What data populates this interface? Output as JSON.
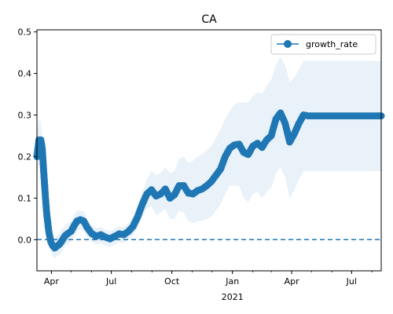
{
  "chart_data": {
    "type": "line",
    "title": "CA",
    "xlabel": "",
    "ylabel": "",
    "x_range": [
      "2020-03-10",
      "2021-08-15"
    ],
    "ylim": [
      -0.075,
      0.505
    ],
    "x_ticks": [
      {
        "date": "2020-04-01",
        "label": "Apr"
      },
      {
        "date": "2020-07-01",
        "label": "Jul"
      },
      {
        "date": "2020-10-01",
        "label": "Oct"
      },
      {
        "date": "2021-01-01",
        "label": "Jan"
      },
      {
        "date": "2021-04-01",
        "label": "Apr"
      },
      {
        "date": "2021-07-01",
        "label": "Jul"
      }
    ],
    "x_year_label": {
      "date": "2021-01-01",
      "label": "2021"
    },
    "y_ticks": [
      0.0,
      0.1,
      0.2,
      0.3,
      0.4,
      0.5
    ],
    "y_tick_labels": [
      "0.0",
      "0.1",
      "0.2",
      "0.3",
      "0.4",
      "0.5"
    ],
    "reference_line": {
      "y": 0.0,
      "style": "dashed",
      "color": "#1f77b4"
    },
    "legend": {
      "position": "top-right",
      "entries": [
        "growth_rate"
      ]
    },
    "colors": {
      "series": "#1f77b4",
      "band": "#dbe8f5"
    },
    "series": [
      {
        "name": "growth_rate",
        "x": [
          "2020-03-10",
          "2020-03-13",
          "2020-03-16",
          "2020-03-18",
          "2020-03-20",
          "2020-03-23",
          "2020-03-25",
          "2020-03-28",
          "2020-03-31",
          "2020-04-03",
          "2020-04-06",
          "2020-04-10",
          "2020-04-14",
          "2020-04-18",
          "2020-04-22",
          "2020-04-26",
          "2020-05-01",
          "2020-05-06",
          "2020-05-10",
          "2020-05-15",
          "2020-05-20",
          "2020-05-25",
          "2020-06-01",
          "2020-06-08",
          "2020-06-15",
          "2020-06-22",
          "2020-06-29",
          "2020-07-06",
          "2020-07-13",
          "2020-07-20",
          "2020-07-27",
          "2020-08-03",
          "2020-08-10",
          "2020-08-17",
          "2020-08-24",
          "2020-08-31",
          "2020-09-07",
          "2020-09-14",
          "2020-09-21",
          "2020-09-28",
          "2020-10-05",
          "2020-10-12",
          "2020-10-19",
          "2020-10-26",
          "2020-11-02",
          "2020-11-09",
          "2020-11-16",
          "2020-11-23",
          "2020-11-30",
          "2020-12-07",
          "2020-12-14",
          "2020-12-21",
          "2020-12-28",
          "2021-01-04",
          "2021-01-11",
          "2021-01-18",
          "2021-01-25",
          "2021-02-01",
          "2021-02-08",
          "2021-02-15",
          "2021-02-22",
          "2021-03-01",
          "2021-03-08",
          "2021-03-15",
          "2021-03-22",
          "2021-03-29",
          "2021-04-05",
          "2021-04-12",
          "2021-04-19",
          "2021-04-26",
          "2021-05-03",
          "2021-05-10",
          "2021-05-17",
          "2021-05-24",
          "2021-05-31",
          "2021-06-07",
          "2021-06-14",
          "2021-06-21",
          "2021-06-28",
          "2021-07-05",
          "2021-07-12",
          "2021-07-19",
          "2021-07-26",
          "2021-08-02",
          "2021-08-09",
          "2021-08-15"
        ],
        "y": [
          0.2,
          0.24,
          0.24,
          0.22,
          0.17,
          0.1,
          0.06,
          0.02,
          -0.005,
          -0.015,
          -0.02,
          -0.015,
          -0.01,
          0.0,
          0.01,
          0.015,
          0.02,
          0.035,
          0.045,
          0.048,
          0.045,
          0.03,
          0.015,
          0.008,
          0.012,
          0.006,
          0.002,
          0.008,
          0.014,
          0.012,
          0.02,
          0.032,
          0.055,
          0.085,
          0.11,
          0.12,
          0.105,
          0.11,
          0.122,
          0.1,
          0.108,
          0.13,
          0.13,
          0.112,
          0.11,
          0.118,
          0.122,
          0.13,
          0.14,
          0.155,
          0.17,
          0.2,
          0.22,
          0.228,
          0.23,
          0.21,
          0.205,
          0.225,
          0.232,
          0.222,
          0.24,
          0.25,
          0.29,
          0.305,
          0.28,
          0.235,
          0.255,
          0.28,
          0.3,
          0.298,
          0.298,
          0.298,
          0.298,
          0.298,
          0.298,
          0.298,
          0.298,
          0.298,
          0.298,
          0.298,
          0.298,
          0.298,
          0.298,
          0.298,
          0.298,
          0.298
        ],
        "band_upper": [
          0.26,
          0.29,
          0.28,
          0.25,
          0.2,
          0.13,
          0.09,
          0.05,
          0.02,
          0.01,
          0.005,
          0.01,
          0.018,
          0.028,
          0.035,
          0.04,
          0.045,
          0.06,
          0.07,
          0.07,
          0.068,
          0.05,
          0.035,
          0.028,
          0.03,
          0.024,
          0.02,
          0.026,
          0.032,
          0.03,
          0.04,
          0.055,
          0.082,
          0.115,
          0.145,
          0.165,
          0.155,
          0.16,
          0.175,
          0.16,
          0.165,
          0.195,
          0.2,
          0.185,
          0.19,
          0.2,
          0.205,
          0.215,
          0.225,
          0.245,
          0.265,
          0.29,
          0.31,
          0.325,
          0.33,
          0.33,
          0.33,
          0.345,
          0.355,
          0.35,
          0.37,
          0.385,
          0.42,
          0.44,
          0.42,
          0.38,
          0.39,
          0.41,
          0.43,
          0.43,
          0.43,
          0.43,
          0.43,
          0.43,
          0.43,
          0.43,
          0.43,
          0.43,
          0.43,
          0.43,
          0.43,
          0.43,
          0.43,
          0.43,
          0.43,
          0.43
        ],
        "band_lower": [
          0.14,
          0.19,
          0.2,
          0.19,
          0.14,
          0.07,
          0.03,
          -0.01,
          -0.03,
          -0.04,
          -0.045,
          -0.04,
          -0.035,
          -0.025,
          -0.015,
          -0.01,
          -0.005,
          0.01,
          0.02,
          0.025,
          0.02,
          0.008,
          -0.005,
          -0.012,
          -0.008,
          -0.014,
          -0.018,
          -0.012,
          -0.006,
          -0.008,
          0.0,
          0.01,
          0.03,
          0.055,
          0.075,
          0.08,
          0.06,
          0.065,
          0.075,
          0.05,
          0.05,
          0.07,
          0.065,
          0.045,
          0.04,
          0.045,
          0.045,
          0.05,
          0.055,
          0.07,
          0.085,
          0.11,
          0.13,
          0.13,
          0.13,
          0.1,
          0.09,
          0.11,
          0.115,
          0.1,
          0.115,
          0.125,
          0.16,
          0.175,
          0.15,
          0.1,
          0.12,
          0.145,
          0.165,
          0.165,
          0.165,
          0.165,
          0.165,
          0.165,
          0.165,
          0.165,
          0.165,
          0.165,
          0.165,
          0.165,
          0.165,
          0.165,
          0.165,
          0.165,
          0.165,
          0.165
        ]
      }
    ]
  }
}
